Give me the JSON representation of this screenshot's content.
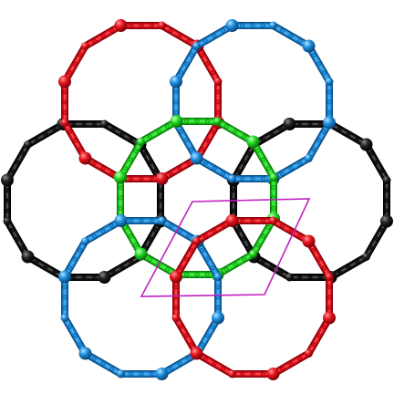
{
  "diagram": {
    "description_text": "",
    "rings": [
      {
        "id": "ring-red-top",
        "color": "#e8141e",
        "dark": "#8c0008"
      },
      {
        "id": "ring-blue-top",
        "color": "#1e90e0",
        "dark": "#0b4f88"
      },
      {
        "id": "ring-black-left",
        "color": "#1a1a1a",
        "dark": "#000000"
      },
      {
        "id": "ring-black-right",
        "color": "#1a1a1a",
        "dark": "#000000"
      },
      {
        "id": "ring-green-center",
        "color": "#22dd22",
        "dark": "#0b7d0b"
      },
      {
        "id": "ring-blue-bottom",
        "color": "#1e90e0",
        "dark": "#0b4f88"
      },
      {
        "id": "ring-red-bottom",
        "color": "#e8141e",
        "dark": "#8c0008"
      }
    ],
    "unit_cell": {
      "color": "#c020c0"
    }
  }
}
